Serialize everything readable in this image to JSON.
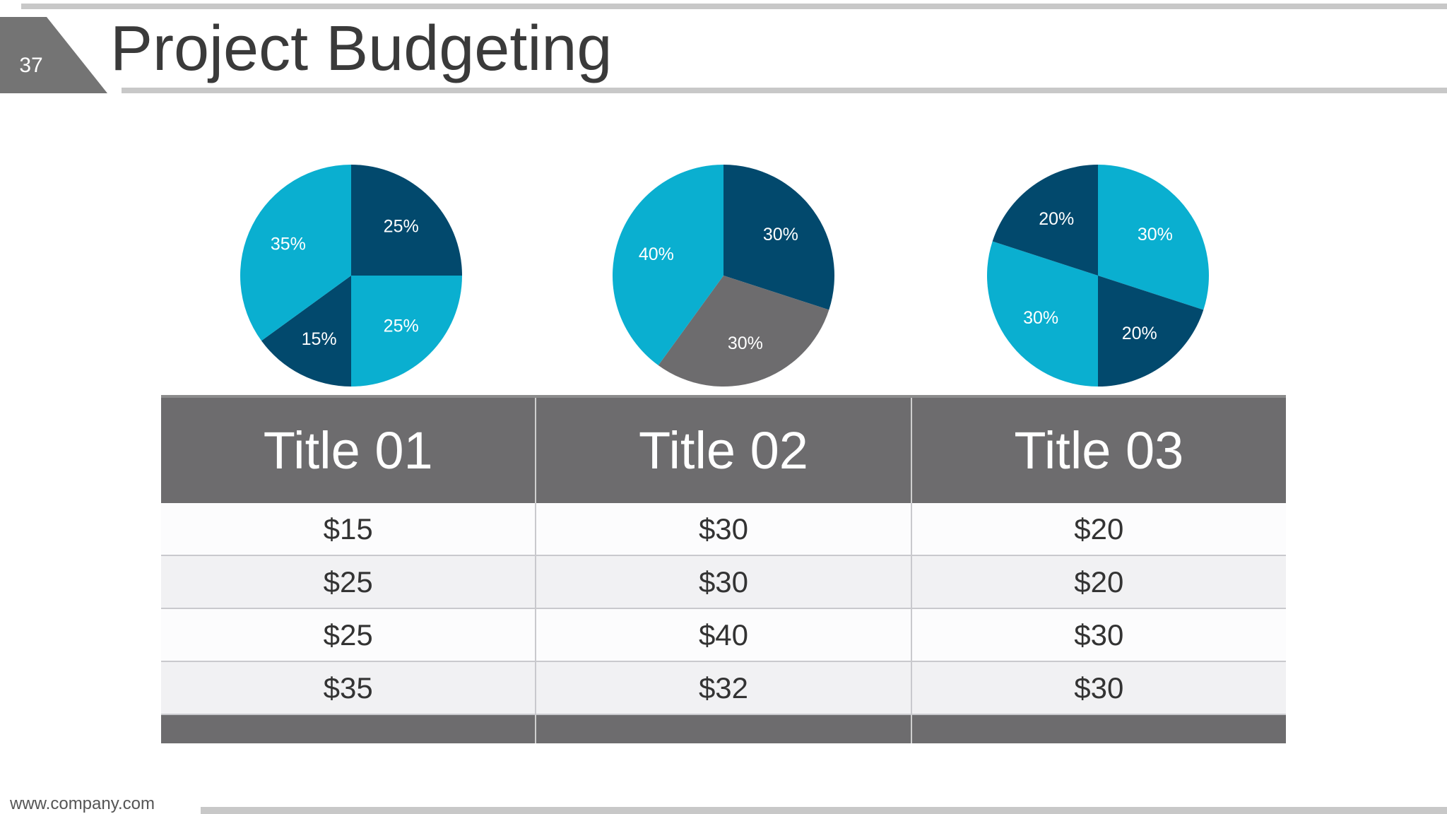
{
  "slide": {
    "number": "37",
    "title": "Project Budgeting",
    "footer_url": "www.company.com"
  },
  "colors": {
    "dark_blue": "#02496d",
    "light_blue": "#0aafd0",
    "gray": "#6d6c6e"
  },
  "chart_data": [
    {
      "type": "pie",
      "slices": [
        {
          "value": 25,
          "label": "25%",
          "color": "#02496d"
        },
        {
          "value": 25,
          "label": "25%",
          "color": "#0aafd0"
        },
        {
          "value": 15,
          "label": "15%",
          "color": "#02496d"
        },
        {
          "value": 35,
          "label": "35%",
          "color": "#0aafd0"
        }
      ]
    },
    {
      "type": "pie",
      "slices": [
        {
          "value": 30,
          "label": "30%",
          "color": "#02496d"
        },
        {
          "value": 30,
          "label": "30%",
          "color": "#6d6c6e"
        },
        {
          "value": 40,
          "label": "40%",
          "color": "#0aafd0"
        }
      ]
    },
    {
      "type": "pie",
      "slices": [
        {
          "value": 30,
          "label": "30%",
          "color": "#0aafd0"
        },
        {
          "value": 20,
          "label": "20%",
          "color": "#02496d"
        },
        {
          "value": 30,
          "label": "30%",
          "color": "#0aafd0"
        },
        {
          "value": 20,
          "label": "20%",
          "color": "#02496d"
        }
      ]
    },
    {
      "type": "table",
      "columns": [
        "Title 01",
        "Title 02",
        "Title 03"
      ],
      "rows": [
        [
          "$15",
          "$30",
          "$20"
        ],
        [
          "$25",
          "$30",
          "$20"
        ],
        [
          "$25",
          "$40",
          "$30"
        ],
        [
          "$35",
          "$32",
          "$30"
        ]
      ]
    }
  ]
}
